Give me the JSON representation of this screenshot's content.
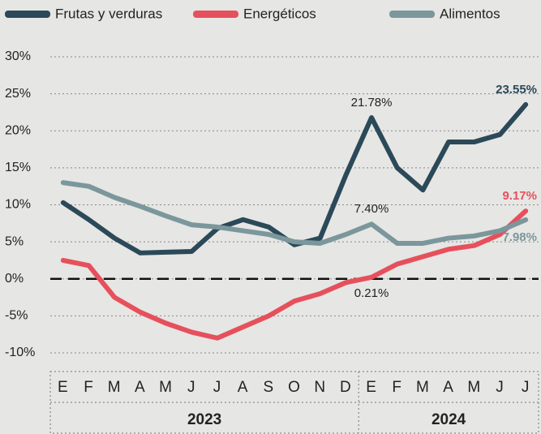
{
  "chart_data": {
    "type": "line",
    "categories": [
      "E",
      "F",
      "M",
      "A",
      "M",
      "J",
      "J",
      "A",
      "S",
      "O",
      "N",
      "D",
      "E",
      "F",
      "M",
      "A",
      "M",
      "J",
      "J"
    ],
    "groups": [
      {
        "label": "2023",
        "count": 12
      },
      {
        "label": "2024",
        "count": 7
      }
    ],
    "series": [
      {
        "name": "Frutas y verduras",
        "color": "#2b4958",
        "values": [
          10.3,
          8,
          5.5,
          3.5,
          3.6,
          3.7,
          6.8,
          8,
          7,
          4.6,
          5.5,
          14,
          21.78,
          15,
          12,
          18.5,
          18.5,
          19.5,
          23.55
        ],
        "value_labels": [
          null,
          null,
          null,
          null,
          null,
          null,
          null,
          null,
          null,
          null,
          null,
          null,
          "21.78%",
          null,
          null,
          null,
          null,
          null,
          "23.55%"
        ]
      },
      {
        "name": "Energéticos",
        "color": "#e6505c",
        "values": [
          2.5,
          1.8,
          -2.5,
          -4.5,
          -6,
          -7.2,
          -8,
          -6.5,
          -5,
          -3,
          -2,
          -0.5,
          0.21,
          2,
          3,
          4,
          4.5,
          6,
          9.17
        ],
        "value_labels": [
          null,
          null,
          null,
          null,
          null,
          null,
          null,
          null,
          null,
          null,
          null,
          null,
          "0.21%",
          null,
          null,
          null,
          null,
          null,
          "9.17%"
        ]
      },
      {
        "name": "Alimentos",
        "color": "#7b979c",
        "values": [
          13,
          12.5,
          11,
          9.8,
          8.5,
          7.3,
          7,
          6.5,
          6,
          5,
          4.8,
          6,
          7.4,
          4.8,
          4.8,
          5.5,
          5.8,
          6.5,
          7.98
        ],
        "value_labels": [
          null,
          null,
          null,
          null,
          null,
          null,
          null,
          null,
          null,
          null,
          null,
          null,
          "7.40%",
          null,
          null,
          null,
          null,
          null,
          "7.98%"
        ]
      }
    ],
    "ylim": [
      -10,
      30
    ],
    "yticks": [
      {
        "value": -10,
        "label": "-10%"
      },
      {
        "value": -5,
        "label": "-5%"
      },
      {
        "value": 0,
        "label": "0%"
      },
      {
        "value": 5,
        "label": "5%"
      },
      {
        "value": 10,
        "label": "10%"
      },
      {
        "value": 15,
        "label": "15%"
      },
      {
        "value": 20,
        "label": "20%"
      },
      {
        "value": 25,
        "label": "25%"
      },
      {
        "value": 30,
        "label": "30%"
      }
    ],
    "grid": true,
    "zero_line": true,
    "legend": "top"
  }
}
